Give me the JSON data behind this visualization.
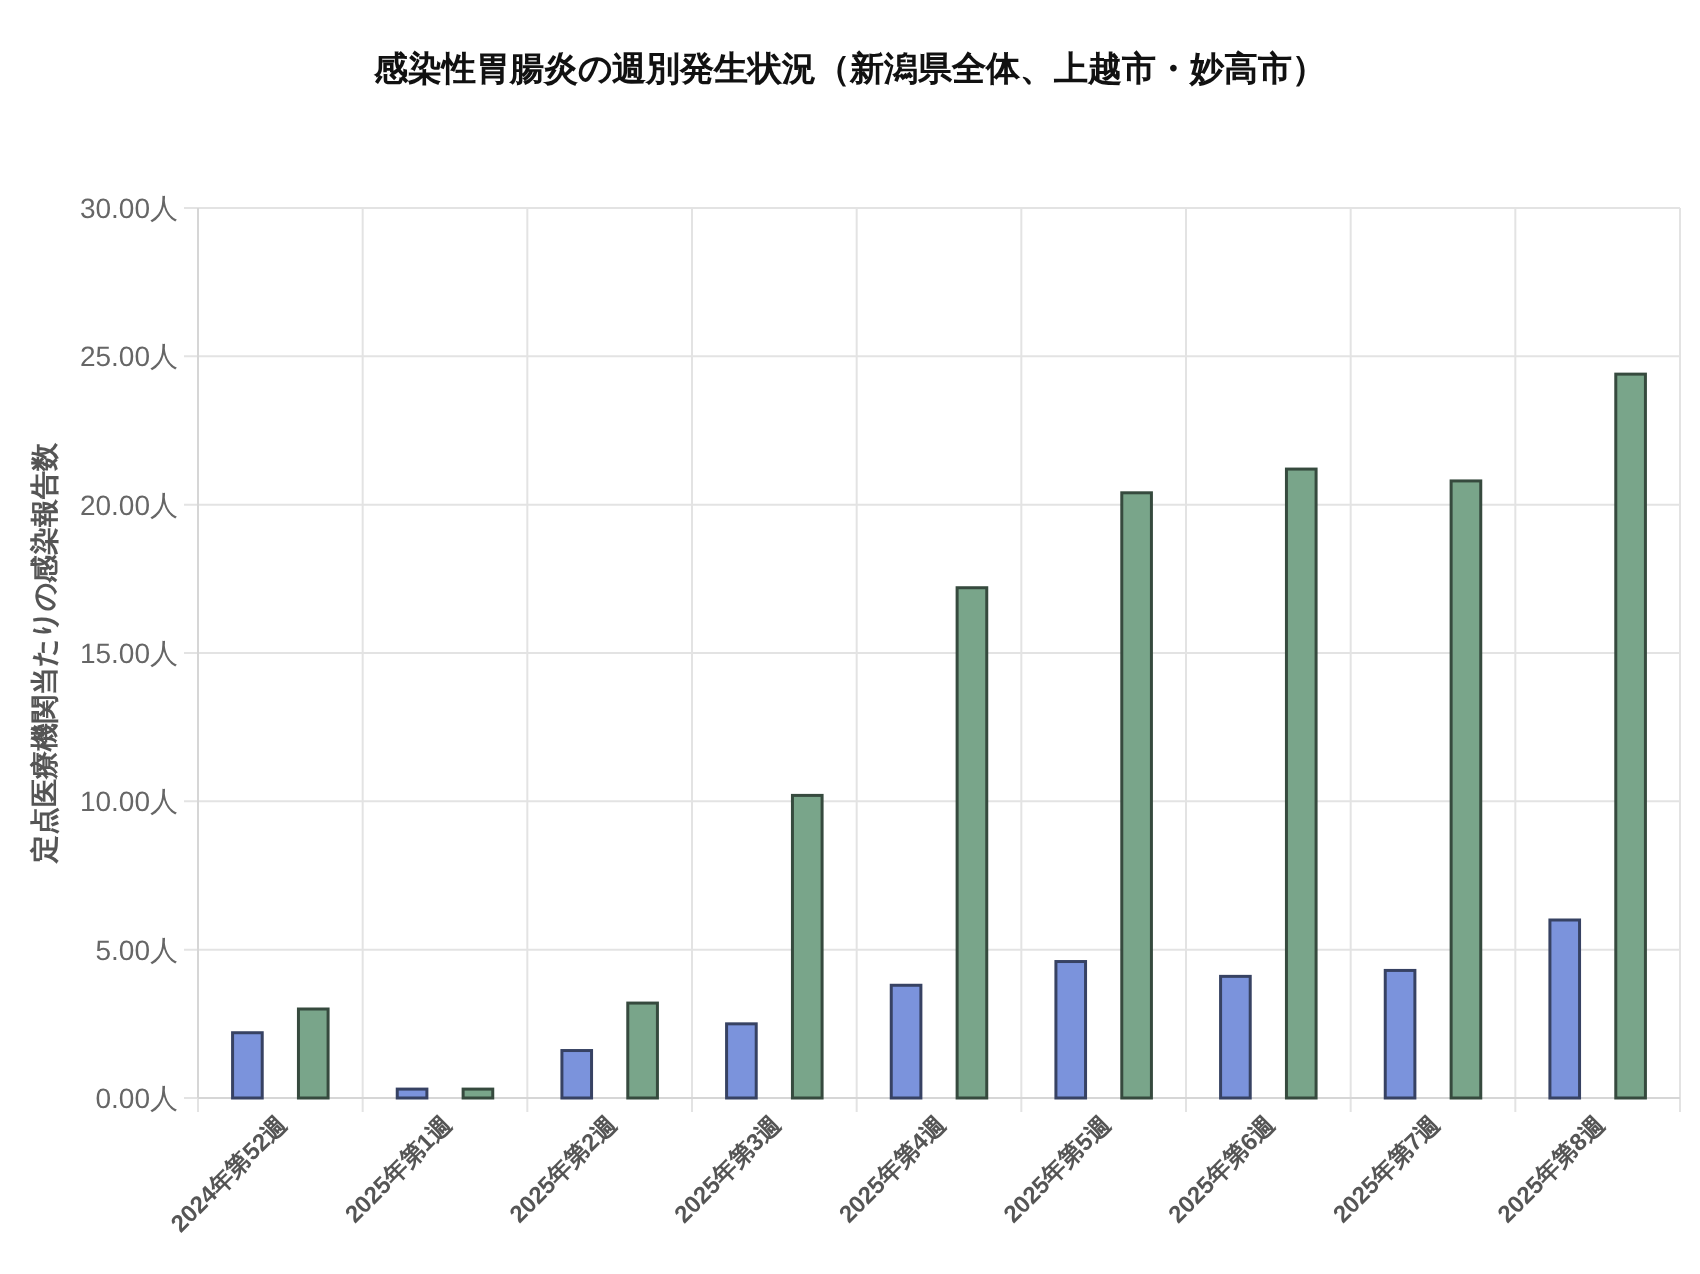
{
  "chart_data": {
    "type": "bar",
    "title": "感染性胃腸炎の週別発生状況（新潟県全体、上越市・妙高市）",
    "ylabel": "定点医療機関当たりの感染報告数",
    "categories": [
      "2024年第52週",
      "2025年第1週",
      "2025年第2週",
      "2025年第3週",
      "2025年第4週",
      "2025年第5週",
      "2025年第6週",
      "2025年第7週",
      "2025年第8週"
    ],
    "series": [
      {
        "color": "#7b93dc",
        "values": [
          2.2,
          0.3,
          1.6,
          2.5,
          3.8,
          4.6,
          4.1,
          4.3,
          6.0
        ]
      },
      {
        "color": "#79a58a",
        "values": [
          3.0,
          0.3,
          3.2,
          10.2,
          17.2,
          20.4,
          21.2,
          20.8,
          24.4
        ]
      }
    ],
    "ylim": [
      0,
      30
    ],
    "yticks": [
      {
        "value": 0,
        "label": "0.00人"
      },
      {
        "value": 5,
        "label": "5.00人"
      },
      {
        "value": 10,
        "label": "10.00人"
      },
      {
        "value": 15,
        "label": "15.00人"
      },
      {
        "value": 20,
        "label": "20.00人"
      },
      {
        "value": 25,
        "label": "25.00人"
      },
      {
        "value": 30,
        "label": "30.00人"
      }
    ],
    "grid": true
  }
}
